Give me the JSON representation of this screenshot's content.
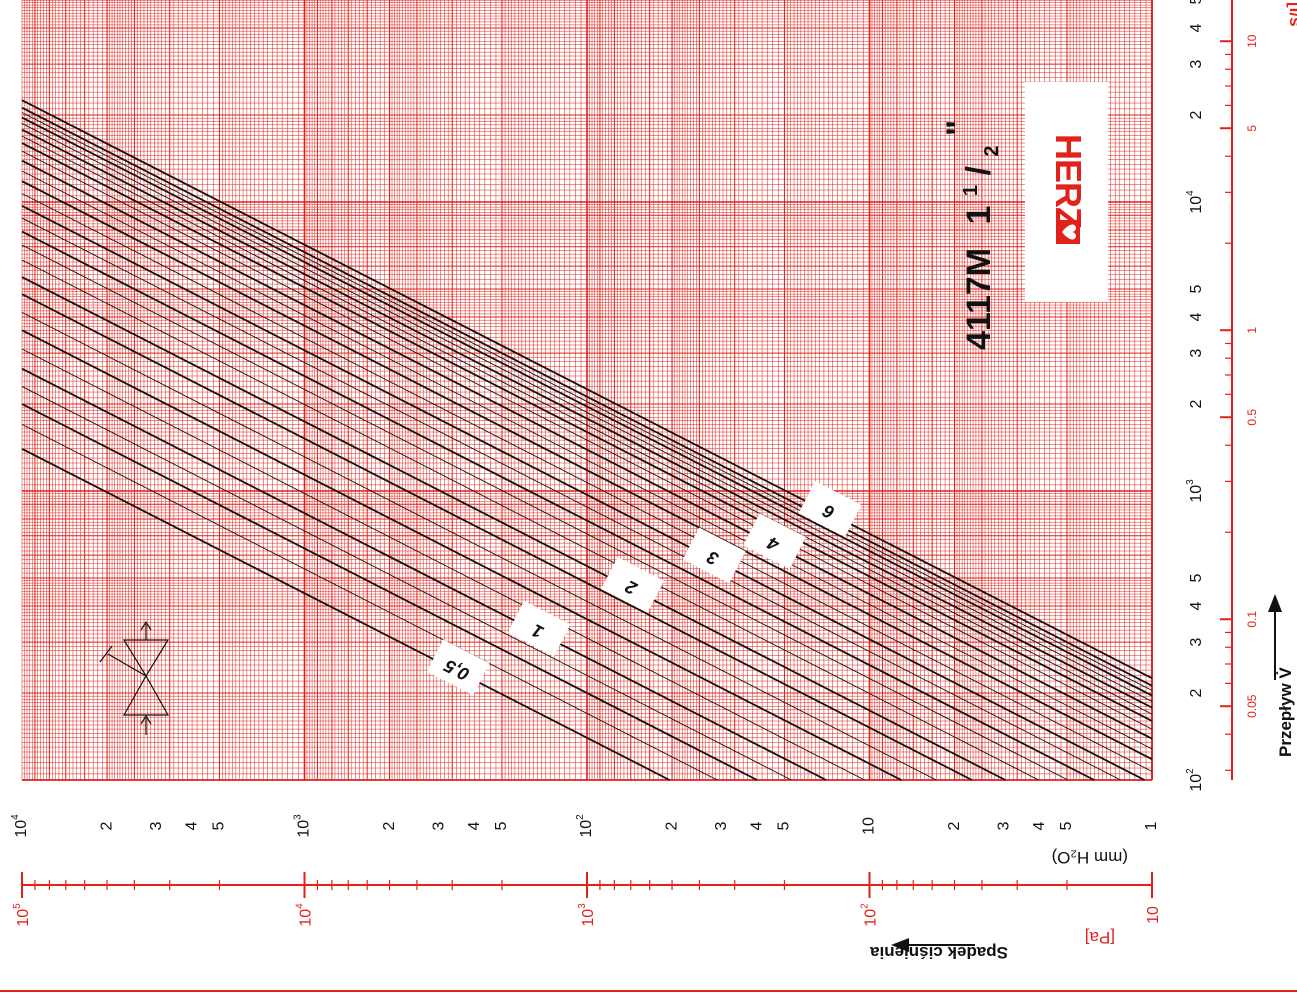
{
  "chart_data": {
    "type": "line",
    "title": "4117M 1 1/2\"",
    "brand": "HERZ",
    "x_axis": {
      "quantity": "Spadek ciśnienia",
      "scale": "log",
      "direction": "decreasing-left-to-right",
      "range_mmH2O": [
        10000,
        1
      ],
      "unit_label": "(mm H₂O)",
      "decade_labels": [
        "10^4",
        "10^3",
        "10^2",
        "10",
        "1"
      ],
      "minor_labels": [
        "5",
        "4",
        "3",
        "2"
      ],
      "secondary": {
        "unit_label": "[Pa]",
        "range": [
          100000,
          10
        ],
        "decade_labels": [
          "10^5",
          "10^4",
          "10^3",
          "10^2",
          "10"
        ]
      }
    },
    "y_axis": {
      "quantity": "Przepływ V̇",
      "scale": "log",
      "range_lh": [
        100,
        50000
      ],
      "decade_labels": [
        "10^2",
        "10^3",
        "10^4"
      ],
      "minor_labels": [
        "2",
        "3",
        "4",
        "5"
      ],
      "secondary": {
        "unit_label": "[l/s]",
        "ticks": [
          {
            "value": 0.05,
            "label": "0.05"
          },
          {
            "value": 0.1,
            "label": "0.1"
          },
          {
            "value": 0.5,
            "label": "0.5"
          },
          {
            "value": 1,
            "label": "1"
          },
          {
            "value": 5,
            "label": "5"
          },
          {
            "value": 10,
            "label": "10"
          }
        ]
      }
    },
    "grid": true,
    "series_note": "straight lines, flow ∝ sqrt(pressure drop); value = flow at 10^4 mm H2O",
    "series": [
      {
        "name": "0,5",
        "flow_at_10000": 1400,
        "weight": "bold",
        "labeled": true
      },
      {
        "flow_at_10000": 1700,
        "weight": "thin"
      },
      {
        "flow_at_10000": 2000,
        "weight": "bold"
      },
      {
        "flow_at_10000": 2300,
        "weight": "thin"
      },
      {
        "name": "1",
        "flow_at_10000": 2650,
        "weight": "bold",
        "labeled": true
      },
      {
        "flow_at_10000": 3100,
        "weight": "thin"
      },
      {
        "flow_at_10000": 3600,
        "weight": "bold"
      },
      {
        "flow_at_10000": 4150,
        "weight": "thin"
      },
      {
        "flow_at_10000": 4800,
        "weight": "bold"
      },
      {
        "name": "2",
        "flow_at_10000": 5500,
        "weight": "bold",
        "labeled": true
      },
      {
        "flow_at_10000": 6300,
        "weight": "thin"
      },
      {
        "flow_at_10000": 7100,
        "weight": "thin"
      },
      {
        "flow_at_10000": 7900,
        "weight": "bold"
      },
      {
        "flow_at_10000": 8800,
        "weight": "thin"
      },
      {
        "name": "3",
        "flow_at_10000": 9700,
        "weight": "bold",
        "labeled": true
      },
      {
        "flow_at_10000": 10700,
        "weight": "thin"
      },
      {
        "flow_at_10000": 11800,
        "weight": "bold"
      },
      {
        "flow_at_10000": 12800,
        "weight": "thin"
      },
      {
        "name": "4",
        "flow_at_10000": 13900,
        "weight": "bold",
        "labeled": true
      },
      {
        "flow_at_10000": 15000,
        "weight": "thin"
      },
      {
        "flow_at_10000": 16000,
        "weight": "bold"
      },
      {
        "flow_at_10000": 16900,
        "weight": "thin"
      },
      {
        "flow_at_10000": 17800,
        "weight": "bold"
      },
      {
        "flow_at_10000": 18700,
        "weight": "thin"
      },
      {
        "flow_at_10000": 19600,
        "weight": "bold"
      },
      {
        "flow_at_10000": 20400,
        "weight": "thin"
      },
      {
        "flow_at_10000": 21200,
        "weight": "bold"
      },
      {
        "name": "6",
        "flow_at_10000": 22500,
        "weight": "bold",
        "labeled": true
      }
    ]
  },
  "texts": {
    "title_model": "4117M",
    "title_size_whole": "1",
    "title_size_num": "1",
    "title_size_den": "2",
    "title_quote": "\"",
    "brand": "HERZ",
    "x_quantity": "Spadek ciśnienia",
    "x_unit": "(mm H₂O)",
    "x_pa_unit": "[Pa]",
    "y_quantity": "Przepływ V̇",
    "y_ls_unit": "[l/s"
  },
  "colors": {
    "grid_red": "#e1211a",
    "curve_black": "#111111",
    "background": "#ffffff"
  },
  "icons": [
    "valve-symbol-icon",
    "flow-arrow-icon",
    "herz-heart-logo-icon"
  ]
}
